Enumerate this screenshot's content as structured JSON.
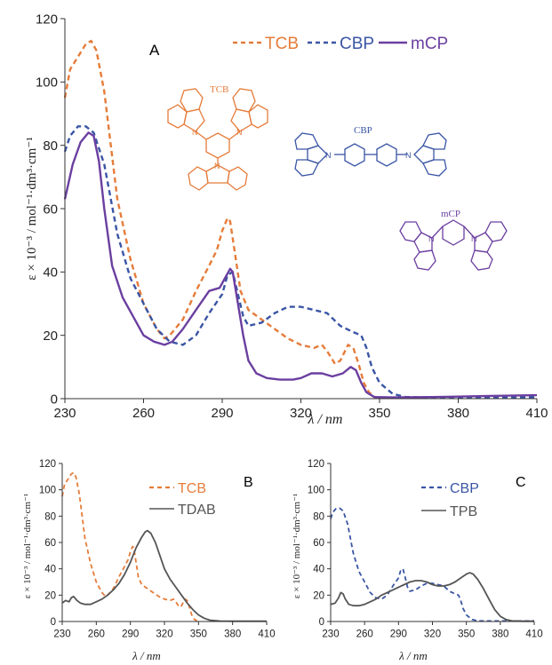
{
  "colors": {
    "TCB": "#E57C3A",
    "CBP": "#3A55A4",
    "mCP": "#6B3FA0",
    "TDAB": "#555555",
    "TPB": "#555555"
  },
  "molecule_labels": {
    "tcb": "TCB",
    "cbp": "CBP",
    "mcp": "mCP"
  },
  "chart_data": [
    {
      "id": "A",
      "panel_label": "A",
      "type": "line",
      "xlabel": "λ / nm",
      "ylabel": "ε × 10⁻³ / mol⁻¹·dm³·cm⁻¹",
      "xlim": [
        230,
        410
      ],
      "ylim": [
        0,
        120
      ],
      "xticks": [
        230,
        260,
        290,
        320,
        350,
        380,
        410
      ],
      "yticks": [
        0,
        20,
        40,
        60,
        80,
        100,
        120
      ],
      "grid": false,
      "legend": "top-right",
      "series": [
        {
          "name": "TCB",
          "style": "dashed",
          "color": "#E57C3A",
          "x": [
            230,
            232,
            235,
            238,
            240,
            242,
            245,
            250,
            255,
            260,
            265,
            268,
            270,
            275,
            280,
            285,
            288,
            290,
            292,
            293,
            295,
            297,
            300,
            305,
            310,
            315,
            320,
            325,
            328,
            330,
            333,
            335,
            338,
            340,
            342,
            344,
            346,
            348,
            350
          ],
          "y": [
            95,
            104,
            108,
            112,
            113,
            110,
            97,
            63,
            44,
            30,
            22,
            19,
            20,
            25,
            34,
            42,
            47,
            53,
            57,
            56,
            45,
            34,
            28,
            25,
            22,
            19,
            17,
            16,
            17,
            15,
            11,
            12,
            17,
            16,
            11,
            5,
            2,
            0.6,
            0.3
          ]
        },
        {
          "name": "CBP",
          "style": "dashed",
          "color": "#3A55A4",
          "x": [
            230,
            232,
            235,
            238,
            241,
            245,
            250,
            255,
            260,
            265,
            270,
            275,
            280,
            285,
            290,
            292,
            294,
            296,
            298,
            300,
            305,
            310,
            315,
            320,
            325,
            330,
            335,
            340,
            343,
            345,
            347,
            350,
            355,
            360,
            370,
            380,
            390,
            400,
            410
          ],
          "y": [
            78,
            83,
            86,
            86,
            84,
            74,
            52,
            38,
            30,
            22,
            18,
            17,
            20,
            27,
            33,
            39,
            40,
            33,
            26,
            23,
            24,
            27,
            29,
            29,
            28,
            27,
            23,
            21,
            20,
            16,
            10,
            5,
            1.5,
            0.5,
            0.4,
            0.4,
            0.4,
            0.4,
            0.5
          ]
        },
        {
          "name": "mCP",
          "style": "solid",
          "color": "#6B3FA0",
          "x": [
            230,
            233,
            236,
            239,
            241,
            243,
            245,
            248,
            252,
            256,
            260,
            264,
            268,
            271,
            275,
            280,
            285,
            289,
            291,
            293,
            294,
            296,
            298,
            300,
            303,
            307,
            312,
            317,
            320,
            324,
            328,
            332,
            336,
            339,
            341,
            343,
            345,
            348,
            355,
            370,
            390,
            410
          ],
          "y": [
            63,
            74,
            81,
            84,
            83,
            75,
            60,
            42,
            32,
            26,
            20,
            18,
            17,
            18,
            22,
            28,
            34,
            35,
            38,
            41,
            40,
            30,
            20,
            12,
            8,
            6.5,
            6,
            6,
            6.5,
            8,
            8,
            7,
            8,
            10,
            9,
            5,
            2,
            0.5,
            0.4,
            0.5,
            0.8,
            1.1
          ]
        }
      ]
    },
    {
      "id": "B",
      "panel_label": "B",
      "type": "line",
      "xlabel": "λ / nm",
      "ylabel": "ε × 10⁻³ / mol⁻¹·dm³·cm⁻¹",
      "xlim": [
        230,
        410
      ],
      "ylim": [
        0,
        120
      ],
      "xticks": [
        230,
        260,
        290,
        320,
        350,
        380,
        410
      ],
      "yticks": [
        0,
        20,
        40,
        60,
        80,
        100,
        120
      ],
      "grid": false,
      "legend": "top-right",
      "series": [
        {
          "name": "TCB",
          "style": "dashed",
          "color": "#E57C3A",
          "x": [
            230,
            232,
            235,
            238,
            240,
            242,
            245,
            250,
            255,
            260,
            265,
            268,
            270,
            275,
            280,
            285,
            288,
            290,
            292,
            293,
            295,
            297,
            300,
            305,
            310,
            315,
            320,
            325,
            328,
            330,
            333,
            335,
            338,
            340,
            342,
            344,
            346,
            348,
            350
          ],
          "y": [
            95,
            104,
            108,
            112,
            113,
            110,
            97,
            63,
            44,
            30,
            22,
            19,
            20,
            25,
            34,
            42,
            47,
            53,
            57,
            56,
            45,
            34,
            28,
            25,
            22,
            19,
            17,
            16,
            17,
            15,
            11,
            12,
            17,
            16,
            11,
            5,
            2,
            0.6,
            0.3
          ]
        },
        {
          "name": "TDAB",
          "style": "solid",
          "color": "#555555",
          "x": [
            230,
            233,
            236,
            238,
            240,
            243,
            246,
            250,
            255,
            260,
            265,
            270,
            275,
            280,
            285,
            290,
            295,
            300,
            303,
            305,
            308,
            312,
            316,
            320,
            325,
            330,
            335,
            340,
            345,
            350,
            355,
            360,
            370,
            380,
            390,
            400,
            410
          ],
          "y": [
            14,
            16,
            15,
            18,
            19,
            16,
            14,
            13,
            13,
            15,
            17,
            20,
            24,
            29,
            36,
            45,
            56,
            64,
            68,
            69,
            67,
            60,
            50,
            40,
            32,
            26,
            20,
            14,
            9,
            5,
            2.5,
            1,
            0.3,
            0.2,
            0.2,
            0.2,
            0.2
          ]
        }
      ]
    },
    {
      "id": "C",
      "panel_label": "C",
      "type": "line",
      "xlabel": "λ / nm",
      "ylabel": "ε × 10⁻³ / mol⁻¹·dm³·cm⁻¹",
      "xlim": [
        230,
        410
      ],
      "ylim": [
        0,
        120
      ],
      "xticks": [
        230,
        260,
        290,
        320,
        350,
        380,
        410
      ],
      "yticks": [
        0,
        20,
        40,
        60,
        80,
        100,
        120
      ],
      "grid": false,
      "legend": "top-right",
      "series": [
        {
          "name": "CBP",
          "style": "dashed",
          "color": "#3A55A4",
          "x": [
            230,
            232,
            235,
            238,
            241,
            245,
            250,
            255,
            260,
            265,
            270,
            275,
            280,
            285,
            290,
            292,
            294,
            296,
            298,
            300,
            305,
            310,
            315,
            320,
            325,
            330,
            335,
            340,
            343,
            345,
            347,
            350,
            355,
            360,
            370,
            380,
            390,
            400,
            410
          ],
          "y": [
            78,
            83,
            86,
            86,
            84,
            74,
            52,
            38,
            30,
            22,
            18,
            17,
            20,
            27,
            33,
            39,
            40,
            33,
            26,
            23,
            24,
            27,
            29,
            29,
            28,
            27,
            23,
            21,
            20,
            16,
            10,
            5,
            1.5,
            0.5,
            0.4,
            0.4,
            0.4,
            0.4,
            0.5
          ]
        },
        {
          "name": "TPB",
          "style": "solid",
          "color": "#555555",
          "x": [
            230,
            234,
            237,
            239,
            241,
            243,
            246,
            250,
            255,
            260,
            265,
            270,
            275,
            280,
            285,
            290,
            295,
            300,
            305,
            310,
            315,
            320,
            325,
            330,
            335,
            340,
            345,
            350,
            353,
            356,
            360,
            365,
            370,
            375,
            380,
            385,
            390,
            400,
            410
          ],
          "y": [
            13,
            14,
            18,
            22,
            21,
            17,
            13,
            12,
            12,
            13,
            15,
            17,
            20,
            22,
            24,
            26,
            28,
            30,
            31,
            31,
            30,
            28,
            27,
            27,
            28,
            30,
            33,
            36,
            37,
            36,
            32,
            25,
            17,
            9,
            4,
            1.5,
            0.5,
            0.2,
            0.2
          ]
        }
      ]
    }
  ]
}
